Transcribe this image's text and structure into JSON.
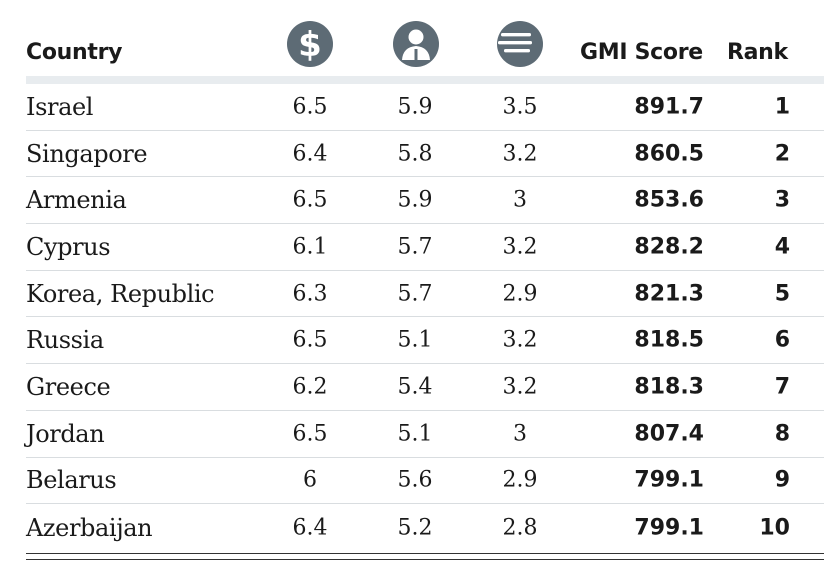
{
  "chart_data": {
    "type": "table",
    "columns": [
      "Country",
      "dollar-icon",
      "person-icon",
      "wind-icon",
      "GMI Score",
      "Rank"
    ],
    "headers": {
      "country": "Country",
      "gmi_score": "GMI Score",
      "rank": "Rank"
    },
    "icon_colors": {
      "icon_fill": "#5d6b75",
      "icon_glyph": "#ffffff"
    },
    "rows": [
      {
        "country": "Israel",
        "v1": "6.5",
        "v2": "5.9",
        "v3": "3.5",
        "gmi": "891.7",
        "rank": "1"
      },
      {
        "country": "Singapore",
        "v1": "6.4",
        "v2": "5.8",
        "v3": "3.2",
        "gmi": "860.5",
        "rank": "2"
      },
      {
        "country": "Armenia",
        "v1": "6.5",
        "v2": "5.9",
        "v3": "3",
        "gmi": "853.6",
        "rank": "3"
      },
      {
        "country": "Cyprus",
        "v1": "6.1",
        "v2": "5.7",
        "v3": "3.2",
        "gmi": "828.2",
        "rank": "4"
      },
      {
        "country": "Korea, Republic",
        "v1": "6.3",
        "v2": "5.7",
        "v3": "2.9",
        "gmi": "821.3",
        "rank": "5"
      },
      {
        "country": "Russia",
        "v1": "6.5",
        "v2": "5.1",
        "v3": "3.2",
        "gmi": "818.5",
        "rank": "6"
      },
      {
        "country": "Greece",
        "v1": "6.2",
        "v2": "5.4",
        "v3": "3.2",
        "gmi": "818.3",
        "rank": "7"
      },
      {
        "country": "Jordan",
        "v1": "6.5",
        "v2": "5.1",
        "v3": "3",
        "gmi": "807.4",
        "rank": "8"
      },
      {
        "country": "Belarus",
        "v1": "6",
        "v2": "5.6",
        "v3": "2.9",
        "gmi": "799.1",
        "rank": "9"
      },
      {
        "country": "Azerbaijan",
        "v1": "6.4",
        "v2": "5.2",
        "v3": "2.8",
        "gmi": "799.1",
        "rank": "10"
      }
    ]
  }
}
